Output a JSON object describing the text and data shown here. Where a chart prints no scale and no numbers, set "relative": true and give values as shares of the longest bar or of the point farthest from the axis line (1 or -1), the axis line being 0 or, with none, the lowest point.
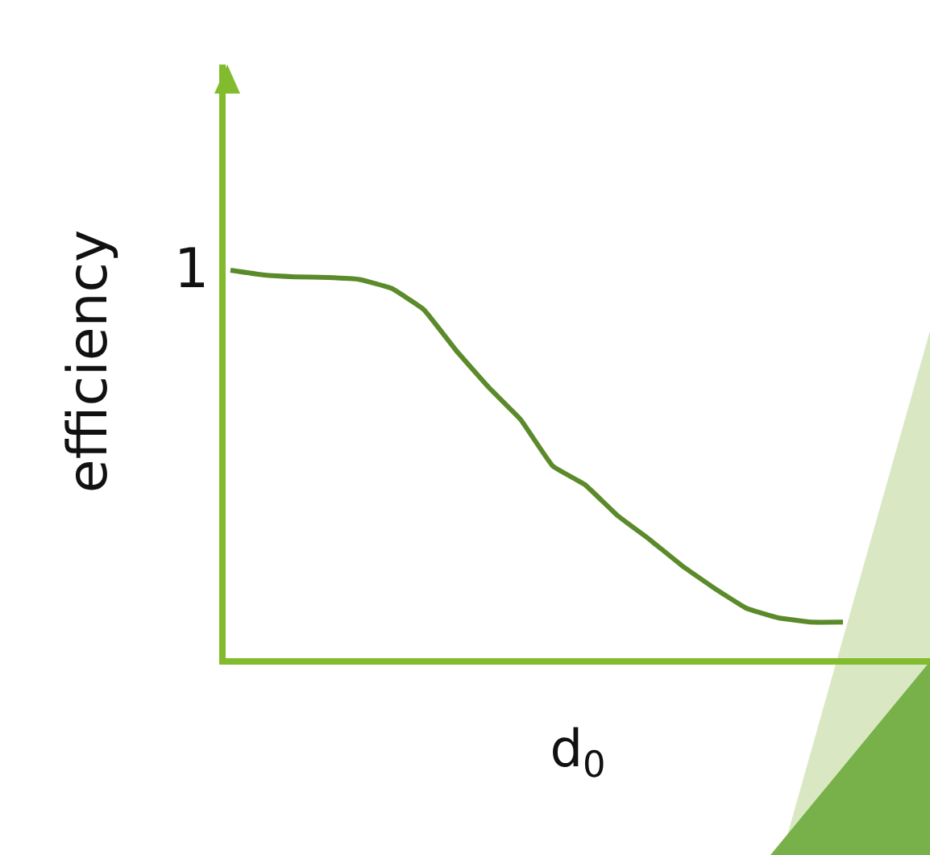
{
  "chart_data": {
    "type": "line",
    "relative": true,
    "xlabel": "d$_{0}$",
    "ylabel": "efficiency",
    "annotations": [
      "1"
    ],
    "color": "#5b8a2a",
    "categories": [
      null,
      null,
      null,
      null,
      null,
      null,
      null,
      null,
      null,
      null,
      null,
      null,
      null,
      null,
      null,
      null,
      null,
      null,
      null,
      null
    ],
    "values": [
      1.0,
      0.988,
      0.983,
      0.981,
      0.976,
      0.953,
      0.898,
      0.793,
      0.699,
      0.615,
      0.495,
      0.447,
      0.368,
      0.306,
      0.239,
      0.181,
      0.129,
      0.104,
      0.093,
      0.093
    ],
    "grid": false,
    "legend": false,
    "marker": "none",
    "line_style": "solid"
  }
}
